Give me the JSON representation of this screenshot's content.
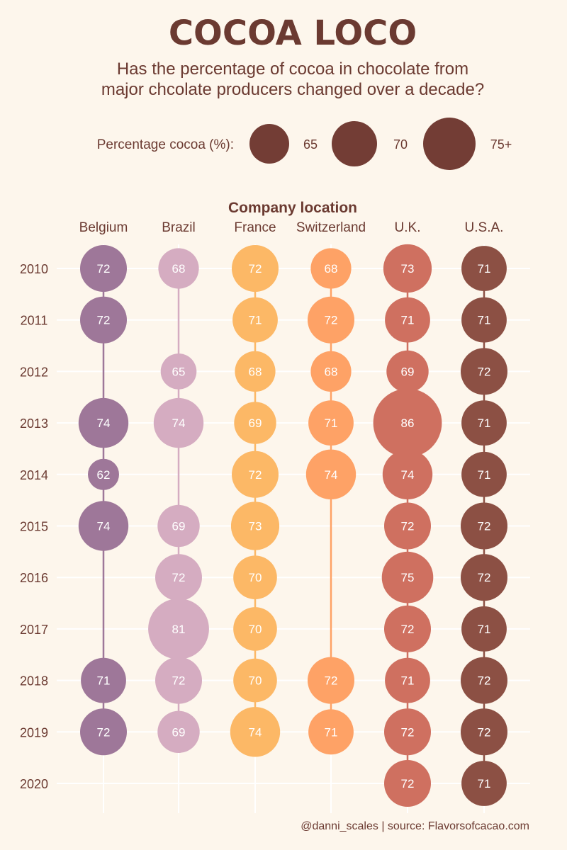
{
  "chart_data": {
    "type": "scatter",
    "title": "COCOA LOCO",
    "subtitle_lines": [
      "Has the percentage of cocoa in chocolate from",
      "major chcolate producers changed over a decade?"
    ],
    "size_legend": {
      "label": "Percentage cocoa (%):",
      "entries": [
        {
          "label": "65",
          "value": 65
        },
        {
          "label": "70",
          "value": 70
        },
        {
          "label": "75+",
          "value": 75
        }
      ]
    },
    "x_title": "Company location",
    "categories": [
      "Belgium",
      "Brazil",
      "France",
      "Switzerland",
      "U.K.",
      "U.S.A."
    ],
    "years": [
      "2010",
      "2011",
      "2012",
      "2013",
      "2014",
      "2015",
      "2016",
      "2017",
      "2018",
      "2019",
      "2020"
    ],
    "colors": {
      "Belgium": "#9e7799",
      "Brazil": "#d5acc1",
      "France": "#fcb866",
      "Switzerland": "#fea266",
      "U.K.": "#cf7060",
      "U.S.A.": "#8c5044",
      "legend": "#733d35",
      "title": "#6b3a31",
      "grid": "#ffffff"
    },
    "series": [
      {
        "name": "Belgium",
        "values": [
          72,
          72,
          null,
          74,
          62,
          74,
          null,
          null,
          71,
          72,
          null
        ]
      },
      {
        "name": "Brazil",
        "values": [
          68,
          null,
          65,
          74,
          null,
          69,
          72,
          81,
          72,
          69,
          null
        ]
      },
      {
        "name": "France",
        "values": [
          72,
          71,
          68,
          69,
          72,
          73,
          70,
          70,
          70,
          74,
          null
        ]
      },
      {
        "name": "Switzerland",
        "values": [
          68,
          72,
          68,
          71,
          74,
          null,
          null,
          null,
          72,
          71,
          null
        ]
      },
      {
        "name": "U.K.",
        "values": [
          73,
          71,
          69,
          86,
          74,
          72,
          75,
          72,
          71,
          72,
          72
        ]
      },
      {
        "name": "U.S.A.",
        "values": [
          71,
          71,
          72,
          71,
          71,
          72,
          72,
          71,
          72,
          72,
          71
        ]
      }
    ],
    "caption": "@danni_scales | source: Flavorsofcacao.com",
    "grid": true
  }
}
